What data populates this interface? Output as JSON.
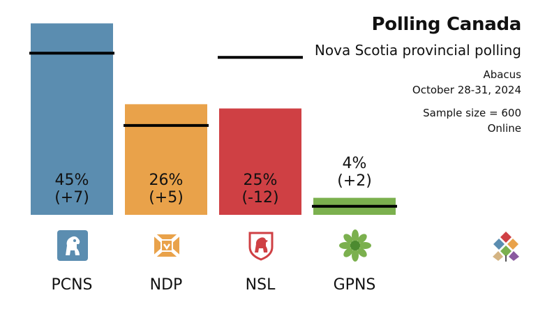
{
  "header": {
    "title": "Polling Canada",
    "subtitle": "Nova Scotia provincial polling",
    "pollster": "Abacus",
    "dates": "October 28-31, 2024",
    "sample": "Sample size = 600",
    "mode": "Online"
  },
  "chart_data": {
    "type": "bar",
    "title": "Polling Canada",
    "subtitle": "Nova Scotia provincial polling",
    "categories": [
      "PCNS",
      "NDP",
      "NSL",
      "GPNS"
    ],
    "values": [
      45,
      26,
      25,
      4
    ],
    "changes": [
      7,
      5,
      -12,
      2
    ],
    "previous_values": [
      38,
      21,
      37,
      2
    ],
    "value_labels": [
      "45%",
      "26%",
      "25%",
      "4%"
    ],
    "change_labels": [
      "(+7)",
      "(+5)",
      "(-12)",
      "(+2)"
    ],
    "colors": [
      "#5b8db0",
      "#e9a24a",
      "#cf4044",
      "#7bb04e"
    ],
    "previous_marker_color": "#000000",
    "ylim": [
      0,
      50
    ],
    "grid": false,
    "legend": "none"
  },
  "logos": {
    "pcns": "pcns-lion-icon",
    "ndp": "ndp-flag-icon",
    "nsl": "nsl-shield-icon",
    "gpns": "gpns-sunflower-icon",
    "brand": "polling-canada-logo"
  }
}
